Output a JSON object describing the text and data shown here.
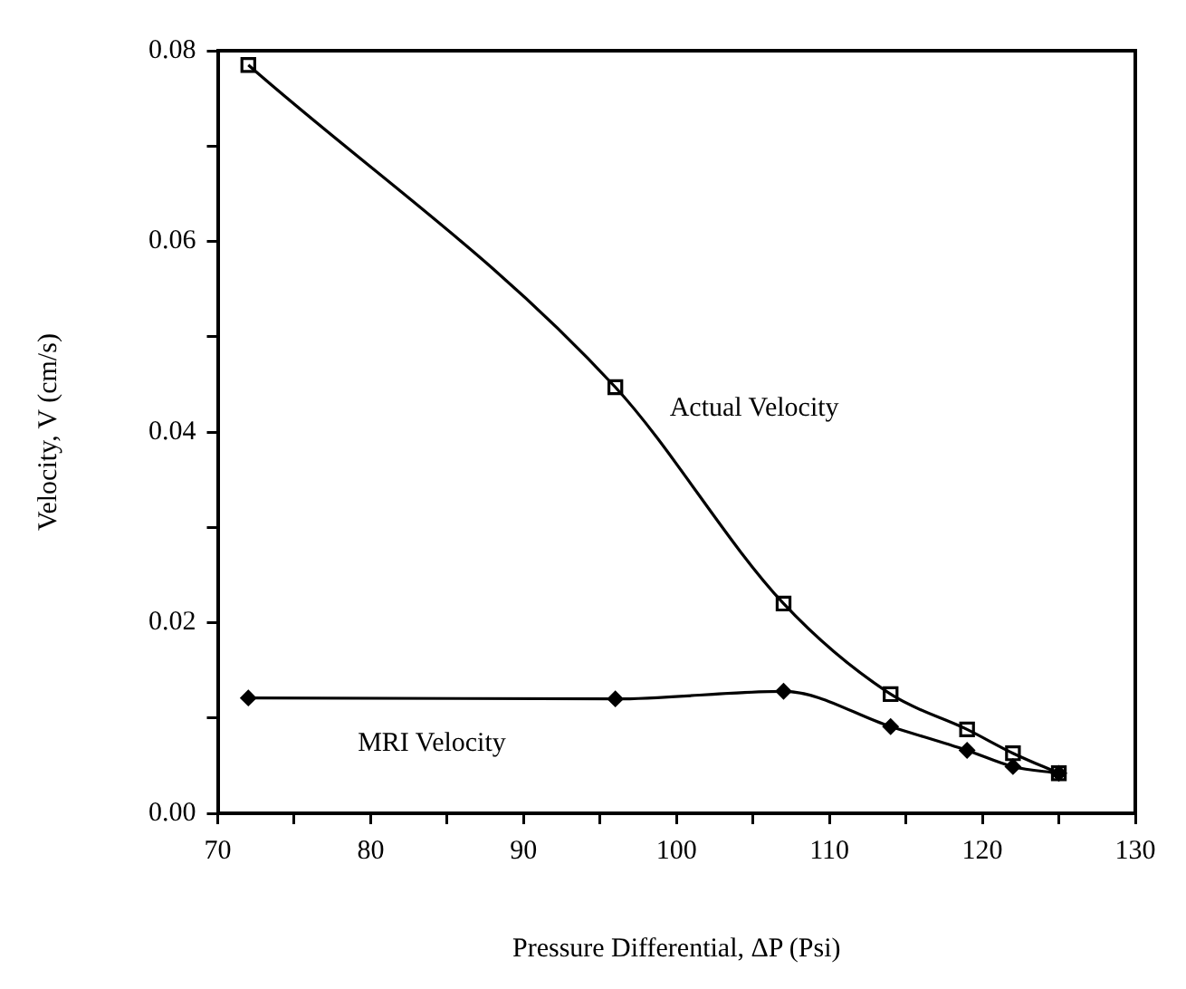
{
  "chart_data": {
    "type": "line",
    "xlabel": "Pressure Differential, ΔP (Psi)",
    "ylabel": "Velocity, V (cm/s)",
    "xlim": [
      70,
      130
    ],
    "xticks": [
      70,
      {
        "value": 75,
        "label": null
      },
      80,
      {
        "value": 85,
        "label": null
      },
      90,
      {
        "value": 95,
        "label": null
      },
      100,
      {
        "value": 105,
        "label": null
      },
      110,
      {
        "value": 115,
        "label": null
      },
      120,
      {
        "value": 125,
        "label": null
      },
      130
    ],
    "ylim": [
      0,
      0.08
    ],
    "yticks": [
      "0.00",
      {
        "value": 0.01,
        "label": null
      },
      {
        "value": 0.02,
        "label": "0.02"
      },
      {
        "value": 0.03,
        "label": null
      },
      {
        "value": 0.04,
        "label": "0.04"
      },
      {
        "value": 0.05,
        "label": null
      },
      {
        "value": 0.06,
        "label": "0.06"
      },
      {
        "value": 0.07,
        "label": null
      },
      {
        "value": 0.08,
        "label": "0.08"
      }
    ],
    "grid": false,
    "legend": false,
    "line_style": "solid",
    "series": [
      {
        "name": "Actual Velocity",
        "color": "#000000",
        "marker": "square",
        "x": [
          72,
          96,
          107,
          114,
          119,
          122,
          125
        ],
        "values": [
          0.0785,
          0.0447,
          0.022,
          0.0125,
          0.0088,
          0.0063,
          0.0042
        ]
      },
      {
        "name": "MRI Velocity",
        "color": "#000000",
        "marker": "diamond",
        "x": [
          72,
          96,
          107,
          114,
          119,
          122,
          125
        ],
        "values": [
          0.0121,
          0.012,
          0.0128,
          0.0091,
          0.0066,
          0.0049,
          0.0042
        ]
      }
    ]
  }
}
